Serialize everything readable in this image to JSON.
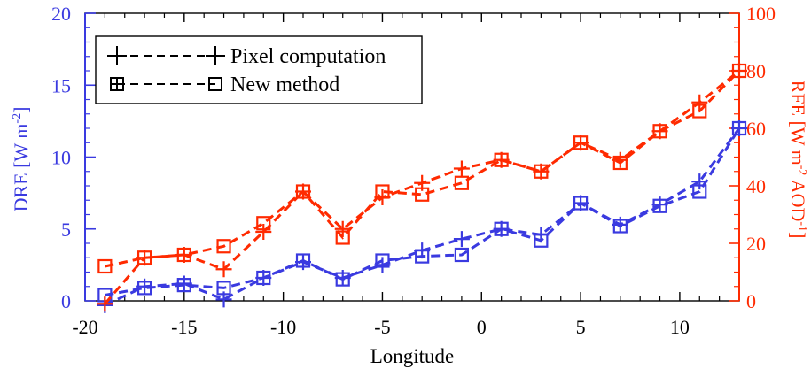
{
  "chart_data": {
    "type": "line",
    "xlabel": "Longitude",
    "xlim": [
      -20,
      13
    ],
    "xticks": [
      -20,
      -15,
      -10,
      -5,
      0,
      5,
      10
    ],
    "x": [
      -19,
      -17,
      -15,
      -13,
      -11,
      -9,
      -7,
      -5,
      -3,
      -1,
      1,
      3,
      5,
      7,
      9,
      11,
      13
    ],
    "left_axis": {
      "label_main": "DRE [W m",
      "label_sup": "-2",
      "label_end": "]",
      "ylim": [
        0,
        20
      ],
      "yticks": [
        0,
        5,
        10,
        15,
        20
      ],
      "color": "#3a3ae0"
    },
    "right_axis": {
      "label_main": "RFE [W m",
      "label_sup1": "-2",
      "label_mid": " AOD",
      "label_sup2": "-1",
      "label_end": "]",
      "ylim": [
        0,
        100
      ],
      "yticks": [
        0,
        20,
        40,
        60,
        80,
        100
      ],
      "color": "#ff2a00"
    },
    "legend": {
      "placement": "top-left",
      "entries": [
        {
          "label": "Pixel computation",
          "marker": "plus"
        },
        {
          "label": "New method",
          "marker": "square"
        }
      ]
    },
    "series": [
      {
        "name": "Pixel computation",
        "axis": "left",
        "marker": "plus",
        "values": [
          -0.3,
          1.0,
          1.2,
          0.1,
          1.6,
          2.7,
          1.6,
          2.5,
          3.5,
          4.3,
          5.0,
          4.6,
          6.8,
          5.3,
          6.7,
          8.3,
          12.0
        ]
      },
      {
        "name": "New method",
        "axis": "left",
        "marker": "square",
        "values": [
          0.4,
          0.9,
          1.1,
          0.9,
          1.6,
          2.8,
          1.5,
          2.8,
          3.1,
          3.2,
          5.0,
          4.2,
          6.8,
          5.2,
          6.6,
          7.6,
          12.0
        ]
      },
      {
        "name": "Pixel computation",
        "axis": "right",
        "marker": "plus",
        "values": [
          -1,
          15,
          16,
          11,
          24,
          38,
          25,
          36,
          41,
          46,
          49,
          45,
          55,
          49,
          59,
          69,
          80
        ]
      },
      {
        "name": "New method",
        "axis": "right",
        "marker": "square",
        "values": [
          12,
          15,
          16,
          19,
          27,
          38,
          22,
          38,
          37,
          41,
          49,
          45,
          55,
          48,
          59,
          66,
          80
        ]
      }
    ]
  }
}
